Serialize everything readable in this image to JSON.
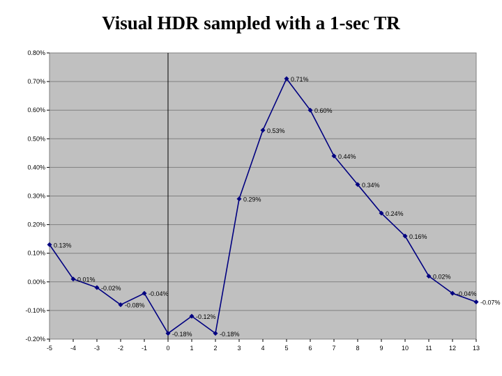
{
  "slide": {
    "title": "Visual HDR sampled with a 1-sec TR"
  },
  "colors": {
    "plot_background": "#c0c0c0",
    "gridline": "#808080",
    "series_line": "#000080",
    "zero_axis": "#000000"
  },
  "chart_data": {
    "type": "line",
    "title": "Visual HDR sampled with a 1-sec TR",
    "xlabel": "",
    "ylabel": "",
    "x": [
      -5,
      -4,
      -3,
      -2,
      -1,
      0,
      1,
      2,
      3,
      4,
      5,
      6,
      7,
      8,
      9,
      10,
      11,
      12,
      13
    ],
    "series": [
      {
        "name": "",
        "values": [
          0.0013,
          0.0001,
          -0.0002,
          -0.0008,
          -0.0004,
          -0.0018,
          -0.0012,
          -0.0018,
          0.0029,
          0.0053,
          0.0071,
          0.006,
          0.0044,
          0.0034,
          0.0024,
          0.0016,
          0.0002,
          -0.0004,
          -0.0007
        ],
        "labels": [
          "0.13%",
          "0.01%",
          "-0.02%",
          "-0.08%",
          "-0.04%",
          "-0.18%",
          "-0.12%",
          "-0.18%",
          "0.29%",
          "0.53%",
          "0.71%",
          "0.60%",
          "0.44%",
          "0.34%",
          "0.24%",
          "0.16%",
          "0.02%",
          "-0.04%",
          "-0.07%"
        ]
      }
    ],
    "xlim": [
      -5,
      13
    ],
    "ylim": [
      -0.002,
      0.008
    ],
    "x_ticks": [
      "-5",
      "-4",
      "-3",
      "-2",
      "-1",
      "0",
      "1",
      "2",
      "3",
      "4",
      "5",
      "6",
      "7",
      "8",
      "9",
      "10",
      "11",
      "12",
      "13"
    ],
    "y_ticks": [
      -0.002,
      -0.001,
      0,
      0.001,
      0.002,
      0.003,
      0.004,
      0.005,
      0.006,
      0.007,
      0.008
    ],
    "y_tick_labels": [
      "-0.20%",
      "-0.10%",
      "0.00%",
      "0.10%",
      "0.20%",
      "0.30%",
      "0.40%",
      "0.50%",
      "0.60%",
      "0.70%",
      "0.80%"
    ],
    "grid": true,
    "legend": "none",
    "marker": "diamond"
  }
}
